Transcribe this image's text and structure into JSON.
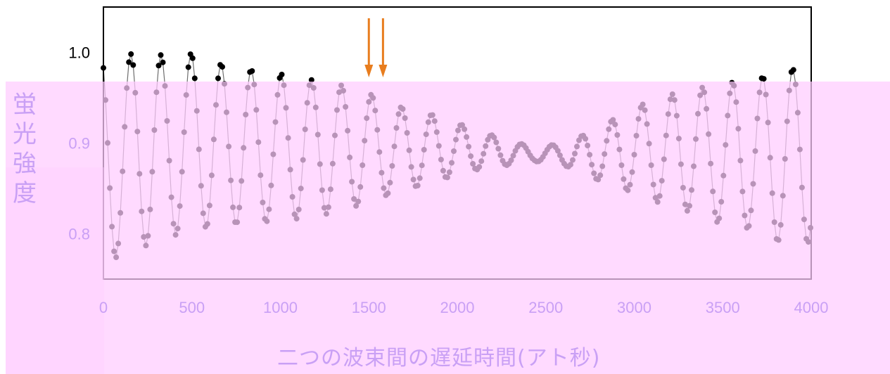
{
  "chart_data": {
    "type": "scatter",
    "title": "",
    "xlabel": "二つの波束間の遅延時間(アト秒)",
    "ylabel": "蛍光強度",
    "xlim": [
      0,
      4000
    ],
    "ylim": [
      0.75,
      1.05
    ],
    "xticks": [
      "0",
      "500",
      "1000",
      "1500",
      "2000",
      "2500",
      "3000",
      "3500",
      "4000"
    ],
    "yticks": [
      "1.0",
      "0.9",
      "0.8"
    ],
    "grid": false,
    "series": [
      {
        "oscillation_period_as": 170,
        "peak_values": [
          1.0,
          0.998,
          0.997,
          0.999,
          0.985,
          0.98,
          0.975,
          0.968,
          0.962,
          0.95,
          0.935,
          0.93,
          0.915,
          0.905,
          0.895,
          0.9,
          0.915,
          0.935,
          0.95,
          0.958,
          0.965,
          0.97,
          0.978,
          0.988
        ],
        "trough_values": [
          0.768,
          0.782,
          0.795,
          0.805,
          0.81,
          0.812,
          0.815,
          0.82,
          0.828,
          0.84,
          0.85,
          0.86,
          0.87,
          0.875,
          0.88,
          0.875,
          0.86,
          0.848,
          0.835,
          0.825,
          0.812,
          0.805,
          0.79,
          0.79
        ]
      }
    ],
    "annotations": [
      {
        "type": "arrow",
        "x": 1500,
        "color": "#e87d1e"
      },
      {
        "type": "arrow",
        "x": 1580,
        "color": "#e87d1e"
      }
    ],
    "colors": {
      "points": "#a57fe0",
      "points_above_overlay": "#000000",
      "overlay": "#ffccff",
      "axis_labels": "#c9a0f5"
    }
  }
}
